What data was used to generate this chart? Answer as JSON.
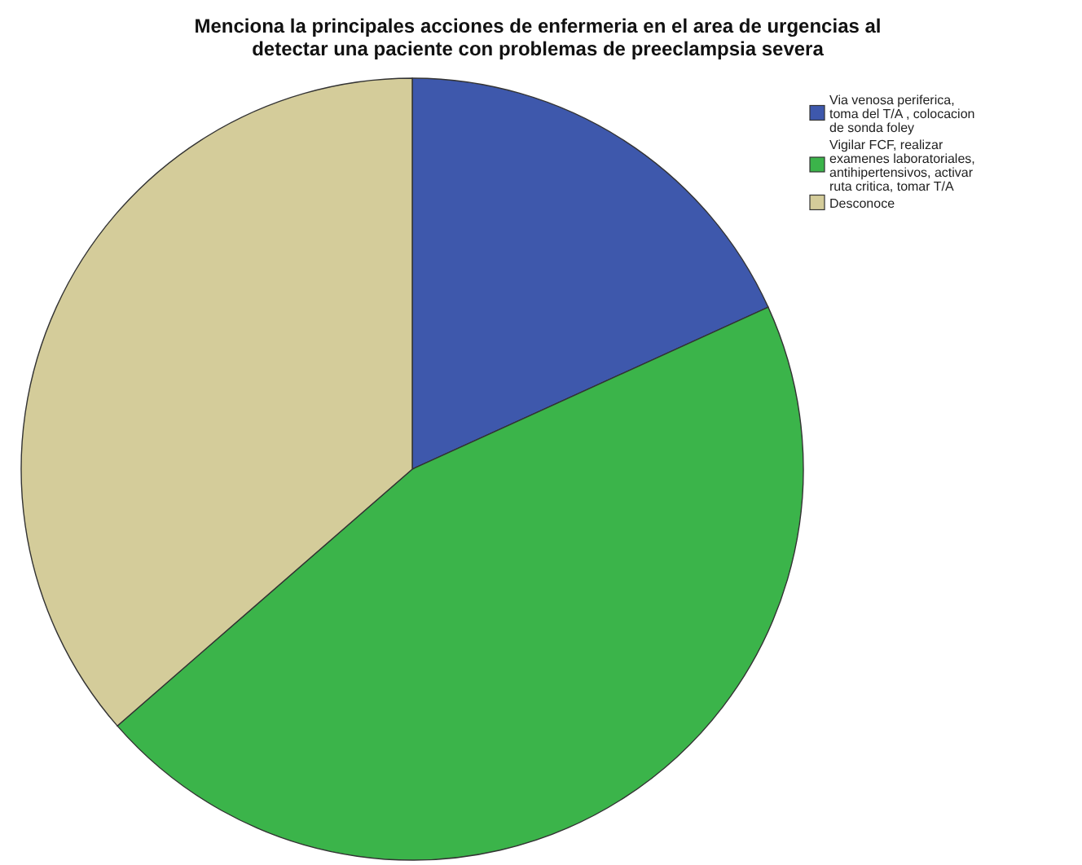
{
  "chart_data": {
    "type": "pie",
    "title": "Menciona la principales acciones de enfermeria en el area de urgencias al detectar una paciente con problemas de preeclampsia severa",
    "categories": [
      "Via venosa periferica, toma del T/A , colocacion de sonda foley",
      "Vigilar FCF, realizar examenes laboratoriales, antihipertensivos, activar ruta critica, tomar T/A",
      "Desconoce"
    ],
    "values": [
      18.2,
      45.4,
      36.4
    ],
    "colors": [
      "#3e58ac",
      "#3bb44a",
      "#d4cc9a"
    ],
    "legend": "top right"
  }
}
